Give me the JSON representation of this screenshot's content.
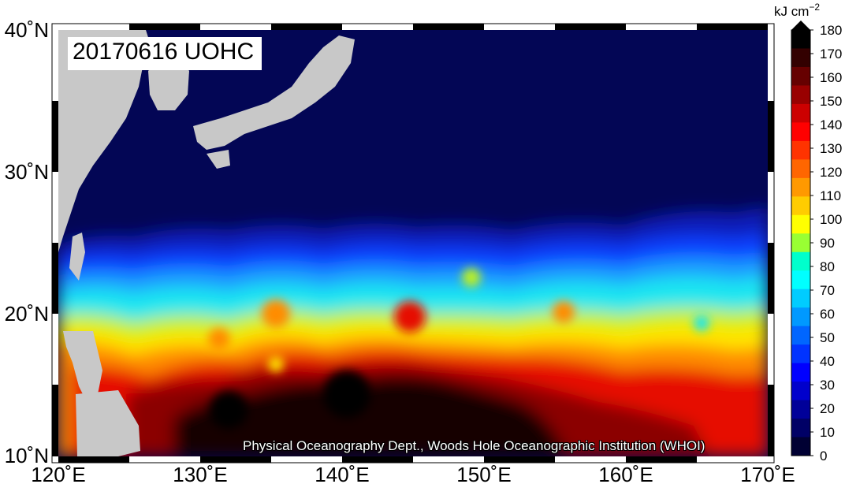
{
  "map": {
    "title": "20170616 UOHC",
    "credit": "Physical Oceanography Dept., Woods Hole Oceanographic Institution (WHOI)",
    "lon_labels": [
      "120˚E",
      "130˚E",
      "140˚E",
      "150˚E",
      "160˚E",
      "170˚E"
    ],
    "lat_labels": [
      "40˚N",
      "30˚N",
      "20˚N",
      "10˚N"
    ],
    "lon_range": [
      120,
      170
    ],
    "lat_range": [
      10,
      40
    ]
  },
  "colorbar": {
    "unit": "kJ cm",
    "unit_exp": "−2",
    "ticks": [
      "180",
      "170",
      "160",
      "150",
      "140",
      "130",
      "120",
      "110",
      "100",
      "90",
      "80",
      "70",
      "60",
      "50",
      "40",
      "30",
      "20",
      "10",
      "0"
    ],
    "colors": [
      "#000000",
      "#330000",
      "#660000",
      "#990000",
      "#cc0000",
      "#ff0000",
      "#ff3300",
      "#ff6600",
      "#ff9900",
      "#ffcc00",
      "#ffff00",
      "#99ff33",
      "#00ffcc",
      "#00ffff",
      "#00ccff",
      "#0099ff",
      "#0066ff",
      "#0033ff",
      "#0000ff",
      "#0000cc",
      "#000099",
      "#000066",
      "#000033"
    ]
  },
  "colors": {
    "ocean_low": "#030655",
    "land": "#c8c8c8"
  }
}
